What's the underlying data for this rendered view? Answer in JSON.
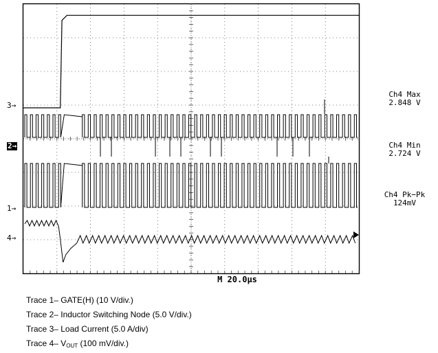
{
  "chart_data": {
    "type": "line",
    "title": "",
    "grid": true,
    "divisions": {
      "x": 10,
      "y": 8
    },
    "timebase": "M 20.0µs",
    "trace_markers": [
      "3",
      "2",
      "1",
      "4"
    ],
    "series": [
      {
        "name": "Trace 1– GATE(H) (10 V/div.)",
        "marker": "1",
        "kind": "square-wave",
        "switching": true
      },
      {
        "name": "Trace 2– Inductor Switching Node (5.0 V/div.)",
        "marker": "2",
        "kind": "square-wave",
        "switching": true
      },
      {
        "name": "Trace 3– Load Current (5.0 A/div)",
        "marker": "3",
        "kind": "step",
        "x_div": [
          0,
          1.1,
          1.15,
          1.3,
          10
        ],
        "y_div_rel": [
          0,
          0,
          2.6,
          2.75,
          2.75
        ]
      },
      {
        "name": "Trace 4– VOUT (100 mV/div.)",
        "marker": "4",
        "kind": "ripple",
        "transient_at_div": 1.1
      }
    ],
    "measurements": [
      {
        "label": "Ch4 Max",
        "value": "2.848 V"
      },
      {
        "label": "Ch4 Min",
        "value": "2.724 V"
      },
      {
        "label": "Ch4 Pk−Pk",
        "value": "124mV"
      }
    ]
  },
  "captions": {
    "trace1": "Trace 1– GATE(H) (10 V/div.)",
    "trace2": "Trace 2– Inductor Switching Node (5.0 V/div.)",
    "trace3": "Trace 3– Load Current (5.0 A/div)",
    "trace4_prefix": "Trace 4– V",
    "trace4_sub": "OUT",
    "trace4_suffix": " (100 mV/div.)"
  }
}
